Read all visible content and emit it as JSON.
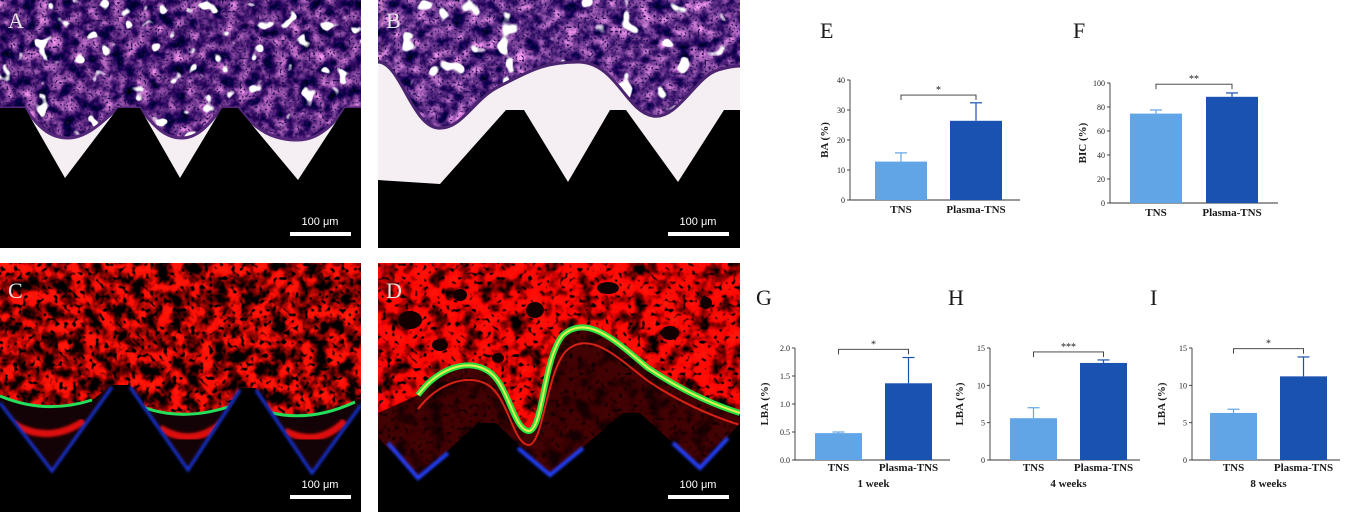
{
  "histology_panels": [
    {
      "label": "A",
      "scale_bar": "100 μm"
    },
    {
      "label": "B",
      "scale_bar": "100 μm"
    },
    {
      "label": "C",
      "scale_bar": "100 μm"
    },
    {
      "label": "D",
      "scale_bar": "100 μm"
    }
  ],
  "bar_colors": [
    "#62a5e6",
    "#1a52b1"
  ],
  "chart_data": [
    {
      "panel": "E",
      "type": "bar",
      "categories": [
        "TNS",
        "Plasma-TNS"
      ],
      "values": [
        12.8,
        26.4
      ],
      "errors": [
        2.9,
        6.0
      ],
      "ylabel": "BA (%)",
      "ylim": [
        0,
        40
      ],
      "yticks": [
        "0",
        "10",
        "20",
        "30",
        "40"
      ],
      "significance": "*"
    },
    {
      "panel": "F",
      "type": "bar",
      "categories": [
        "TNS",
        "Plasma-TNS"
      ],
      "values": [
        74.5,
        88.5
      ],
      "errors": [
        3.0,
        3.2
      ],
      "ylabel": "BIC (%)",
      "ylim": [
        0,
        100
      ],
      "yticks": [
        "0",
        "20",
        "40",
        "60",
        "80",
        "100"
      ],
      "significance": "**"
    },
    {
      "panel": "G",
      "type": "bar",
      "categories": [
        "TNS",
        "Plasma-TNS"
      ],
      "values": [
        0.48,
        1.37
      ],
      "errors": [
        0.02,
        0.46
      ],
      "ylabel": "LBA (%)",
      "xlabel": "1 week",
      "ylim": [
        0,
        2
      ],
      "yticks": [
        "0.0",
        "0.5",
        "1.0",
        "1.5",
        "2.0"
      ],
      "significance": "*"
    },
    {
      "panel": "H",
      "type": "bar",
      "categories": [
        "TNS",
        "Plasma-TNS"
      ],
      "values": [
        5.6,
        13.0
      ],
      "errors": [
        1.4,
        0.4
      ],
      "ylabel": "LBA (%)",
      "xlabel": "4 weeks",
      "ylim": [
        0,
        15
      ],
      "yticks": [
        "0",
        "5",
        "10",
        "15"
      ],
      "significance": "***"
    },
    {
      "panel": "I",
      "type": "bar",
      "categories": [
        "TNS",
        "Plasma-TNS"
      ],
      "values": [
        6.3,
        11.2
      ],
      "errors": [
        0.5,
        2.6
      ],
      "ylabel": "LBA (%)",
      "xlabel": "8 weeks",
      "ylim": [
        0,
        15
      ],
      "yticks": [
        "0",
        "5",
        "10",
        "15"
      ],
      "significance": "*"
    }
  ]
}
